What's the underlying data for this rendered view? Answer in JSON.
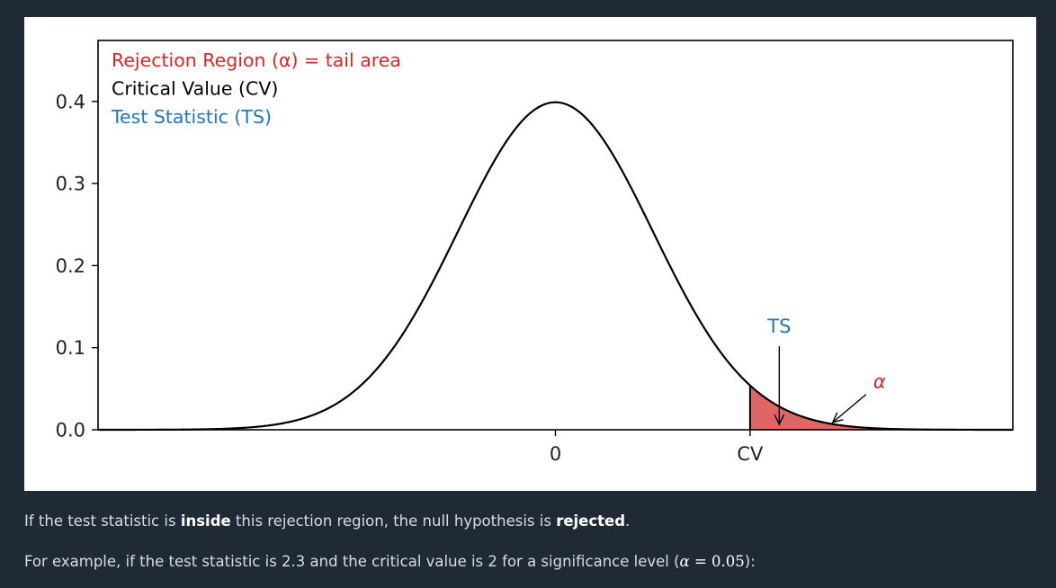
{
  "chart_data": {
    "type": "area",
    "distribution": "standard normal pdf",
    "xlim": [
      -4.7,
      4.7
    ],
    "ylim": [
      0,
      0.4
    ],
    "x_ticks": [
      {
        "value": 0,
        "label": "0"
      },
      {
        "value": 2,
        "label": "CV"
      }
    ],
    "y_ticks": [
      {
        "value": 0.0,
        "label": "0.0"
      },
      {
        "value": 0.1,
        "label": "0.1"
      },
      {
        "value": 0.2,
        "label": "0.2"
      },
      {
        "value": 0.3,
        "label": "0.3"
      },
      {
        "value": 0.4,
        "label": "0.4"
      }
    ],
    "critical_value": 2,
    "test_statistic": 2.3,
    "shaded_region": {
      "from": 2,
      "to": 4.7,
      "color": "#e06666"
    },
    "legend_placement": "top-left",
    "legend": [
      {
        "text": "Rejection Region (α) = tail area",
        "color": "#d62728"
      },
      {
        "text": "Critical Value (CV)",
        "color": "#000000"
      },
      {
        "text": "Test Statistic (TS)",
        "color": "#1f77b4"
      }
    ],
    "annotations": [
      {
        "text": "TS",
        "color": "#1f77b4",
        "points_to_x": 2.3
      },
      {
        "text": "α",
        "color": "#d62728",
        "points_to_x": 2.85
      }
    ]
  },
  "text": {
    "para1": {
      "before": "If the test statistic is ",
      "bold1": "inside",
      "middle": " this rejection region, the null hypothesis is ",
      "bold2": "rejected",
      "after": "."
    },
    "para2": {
      "before": "For example, if the test statistic is 2.3 and the critical value is 2 for a significance level (",
      "math_symbol": "α",
      "math_rest": " = 0.05",
      "after": "):"
    }
  }
}
